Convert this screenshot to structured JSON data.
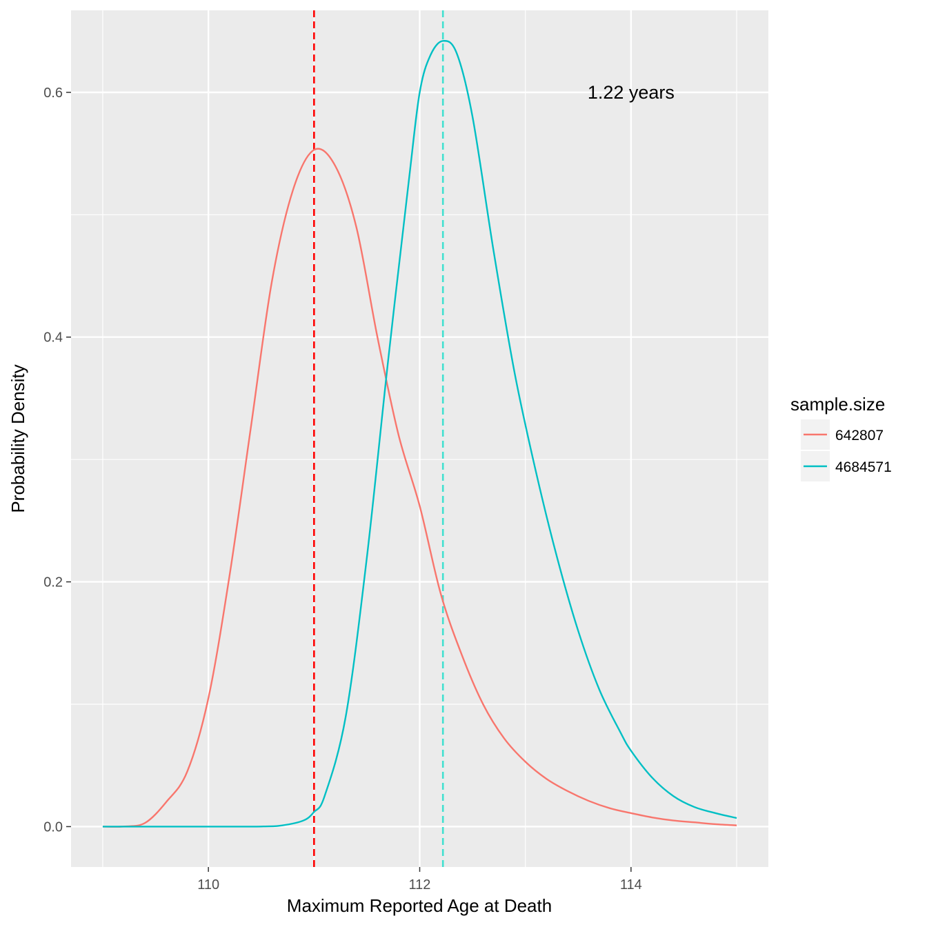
{
  "chart_data": {
    "type": "line",
    "xlabel": "Maximum Reported Age at Death",
    "ylabel": "Probability Density",
    "xlim": [
      108.7,
      115.3
    ],
    "ylim": [
      -0.033,
      0.667
    ],
    "x_ticks": [
      110,
      112,
      114
    ],
    "x_tick_labels": [
      "110",
      "112",
      "114"
    ],
    "x_minor_ticks": [
      109,
      111,
      113,
      115
    ],
    "y_ticks": [
      0.0,
      0.2,
      0.4,
      0.6
    ],
    "y_tick_labels": [
      "0.0",
      "0.2",
      "0.4",
      "0.6"
    ],
    "y_minor_ticks": [
      0.1,
      0.3,
      0.5
    ],
    "grid": true,
    "legend": {
      "title": "sample.size",
      "position": "right"
    },
    "series": [
      {
        "name": "642807",
        "color": "#F8766D",
        "x": [
          109.0,
          109.2,
          109.4,
          109.6,
          109.8,
          110.0,
          110.2,
          110.4,
          110.6,
          110.8,
          111.0,
          111.2,
          111.4,
          111.6,
          111.8,
          112.0,
          112.2,
          112.4,
          112.6,
          112.8,
          113.0,
          113.2,
          113.4,
          113.6,
          113.8,
          114.0,
          114.2,
          114.4,
          114.6,
          114.8,
          115.0
        ],
        "y": [
          0.0,
          0.0001,
          0.003,
          0.02,
          0.045,
          0.105,
          0.205,
          0.325,
          0.445,
          0.52,
          0.553,
          0.54,
          0.49,
          0.4,
          0.32,
          0.262,
          0.19,
          0.14,
          0.1,
          0.072,
          0.053,
          0.039,
          0.029,
          0.021,
          0.015,
          0.011,
          0.0075,
          0.005,
          0.0035,
          0.002,
          0.001
        ]
      },
      {
        "name": "4684571",
        "color": "#00BFC4",
        "x": [
          109.0,
          109.5,
          110.0,
          110.5,
          110.7,
          110.9,
          111.0,
          111.1,
          111.3,
          111.5,
          111.7,
          111.9,
          112.0,
          112.1,
          112.22,
          112.35,
          112.5,
          112.7,
          112.9,
          113.1,
          113.3,
          113.5,
          113.7,
          113.9,
          114.0,
          114.2,
          114.4,
          114.6,
          114.8,
          115.0
        ],
        "y": [
          0.0,
          0.0,
          0.0,
          0.0001,
          0.001,
          0.005,
          0.012,
          0.025,
          0.09,
          0.22,
          0.38,
          0.53,
          0.6,
          0.63,
          0.642,
          0.632,
          0.58,
          0.47,
          0.37,
          0.29,
          0.22,
          0.16,
          0.112,
          0.077,
          0.062,
          0.04,
          0.025,
          0.016,
          0.011,
          0.007
        ]
      }
    ],
    "reference_lines": [
      {
        "x": 111.0,
        "color": "#FF0000",
        "style": "dashed"
      },
      {
        "x": 112.22,
        "color": "#40E0D0",
        "style": "dashed"
      }
    ],
    "annotations": [
      {
        "text": "1.22 years",
        "x": 114.0,
        "y": 0.6
      }
    ]
  }
}
